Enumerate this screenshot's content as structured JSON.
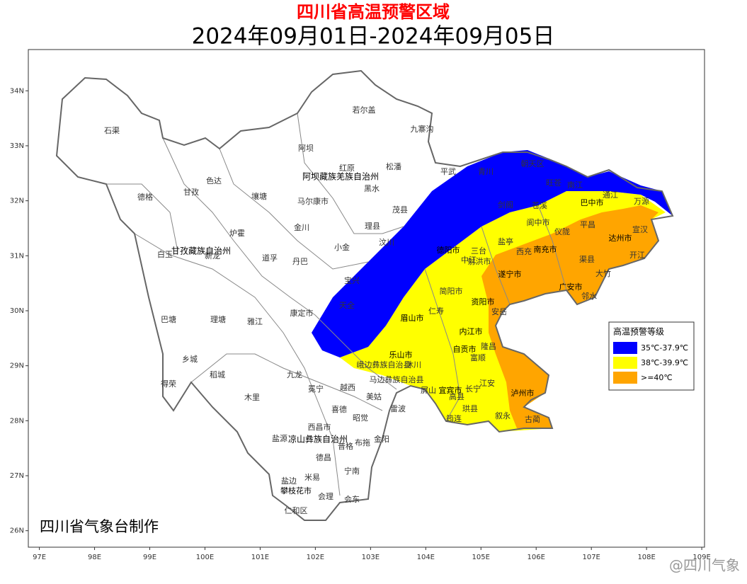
{
  "header": {
    "title": "四川省高温预警区域",
    "subtitle": "2024年09月01日-2024年09月05日"
  },
  "map": {
    "xlim": [
      96.8,
      109.05
    ],
    "ylim": [
      25.7,
      34.75
    ],
    "xticks": [
      {
        "value": 97,
        "label": "97E"
      },
      {
        "value": 98,
        "label": "98E"
      },
      {
        "value": 99,
        "label": "99E"
      },
      {
        "value": 100,
        "label": "100E"
      },
      {
        "value": 101,
        "label": "101E"
      },
      {
        "value": 102,
        "label": "102E"
      },
      {
        "value": 103,
        "label": "103E"
      },
      {
        "value": 104,
        "label": "104E"
      },
      {
        "value": 105,
        "label": "105E"
      },
      {
        "value": 106,
        "label": "106E"
      },
      {
        "value": 107,
        "label": "107E"
      },
      {
        "value": 108,
        "label": "108E"
      },
      {
        "value": 109,
        "label": "109E"
      }
    ],
    "yticks": [
      {
        "value": 34,
        "label": "34N"
      },
      {
        "value": 33,
        "label": "33N"
      },
      {
        "value": 32,
        "label": "32N"
      },
      {
        "value": 31,
        "label": "31N"
      },
      {
        "value": 30,
        "label": "30N"
      },
      {
        "value": 29,
        "label": "29N"
      },
      {
        "value": 28,
        "label": "28N"
      },
      {
        "value": 27,
        "label": "27N"
      },
      {
        "value": 26,
        "label": "26N"
      }
    ],
    "legend": {
      "title": "高温预警等级",
      "items": [
        {
          "label": "35℃-37.9℃",
          "color": "#0000ff"
        },
        {
          "label": "38℃-39.9℃",
          "color": "#ffff00"
        },
        {
          "label": ">=40℃",
          "color": "#ffa500"
        }
      ]
    },
    "places": [
      "石渠",
      "若尔盖",
      "九寨沟",
      "阿坝",
      "红原",
      "松潘",
      "阿坝藏族羌族自治州",
      "德格",
      "甘孜",
      "色达",
      "壤塘",
      "马尔康市",
      "黑水",
      "茂县",
      "平武",
      "青川",
      "朝天区",
      "旺苍",
      "南江",
      "通江",
      "万源",
      "巴中市",
      "炉霍",
      "金川",
      "理县",
      "汶川",
      "白玉",
      "甘孜藏族自治州",
      "新龙",
      "道孚",
      "丹巴",
      "小金",
      "巴塘",
      "理塘",
      "雅江",
      "康定市",
      "宝兴",
      "天全",
      "乡城",
      "稻城",
      "得荣",
      "九龙",
      "木里",
      "冕宁",
      "越西",
      "美姑",
      "喜德",
      "雷波",
      "昭觉",
      "西昌市",
      "盐源",
      "凉山彝族自治州",
      "普格",
      "布拖",
      "金阳",
      "德昌",
      "宁南",
      "米易",
      "盐边",
      "会理",
      "会东",
      "仁和区",
      "攀枝花市",
      "乐山市",
      "峨边彝族自治县",
      "马边彝族自治县",
      "宜宾市",
      "泸州市",
      "古蔺",
      "叙永",
      "筠连",
      "自贡市",
      "内江市",
      "资阳市",
      "德阳市",
      "南充市",
      "遂宁市",
      "广安市",
      "达州市",
      "宣汉",
      "开江",
      "大竹",
      "渠县",
      "邻水",
      "剑阁",
      "苍溪",
      "阆中市",
      "仪陇",
      "西充",
      "三台",
      "盐亭",
      "射洪市",
      "安岳",
      "仁寿",
      "隆昌",
      "富顺",
      "平昌",
      "中江",
      "简阳市",
      "眉山市",
      "珙县",
      "高县",
      "屏山",
      "沐川",
      "江安",
      "长宁"
    ],
    "credit": "四川省气象台制作"
  },
  "watermark": "@四川气象"
}
